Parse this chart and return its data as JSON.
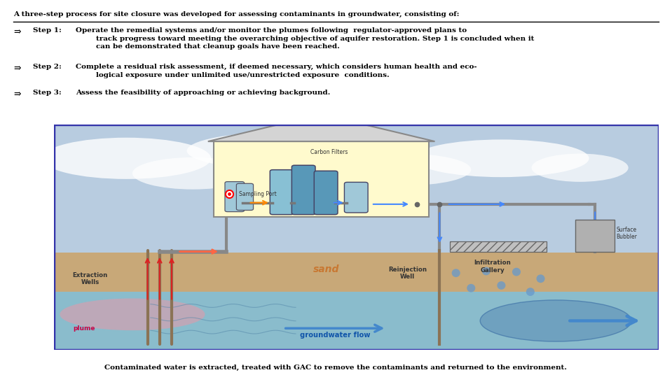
{
  "title_line": "A three-step process for site closure was developed for assessing contaminants in groundwater, consisting of:",
  "step1_bold": "Step 1:",
  "step1_text": "Operate the remedial systems and/or monitor the plumes following  regulator-approved plans to\n        track progress toward meeting the overarching objective of aquifer restoration. Step 1 is concluded when it\n        can be demonstrated that cleanup goals have been reached.",
  "step2_bold": "Step 2:",
  "step2_text": "Complete a residual risk assessment, if deemed necessary, which considers human health and eco-\n        logical exposure under unlimited use/unrestricted exposure  conditions.",
  "step3_bold": "Step 3:",
  "step3_text": "Assess the feasibility of approaching or achieving background.",
  "caption": "Contaminated water is extracted, treated with GAC to remove the contaminants and returned to the environment.",
  "bg_color": "#ffffff",
  "text_color": "#000000",
  "label_color": "#333333",
  "diagram_border": "#3333aa",
  "sky_color": "#b8cce0",
  "ground_color": "#c8a878",
  "gw_color": "#8abccc",
  "building_color": "#fffacd",
  "roof_color": "#d4d4d4",
  "plume_color": "#d4a0b0",
  "pipe_color": "#888888",
  "arrow_red": "#dd2222",
  "arrow_blue": "#4488ff",
  "arrow_orange": "#ff8800",
  "gw_arrow_color": "#4488cc",
  "sand_text_color": "#c87832",
  "tank_light": "#a0c8d8",
  "tank_dark": "#5898b8",
  "tank_mid": "#88c0d4",
  "drop_color": "#6699cc",
  "bubbler_color": "#b0b0b0",
  "infil_color": "#c0c0c0",
  "gw_pool_color": "#6699bb"
}
